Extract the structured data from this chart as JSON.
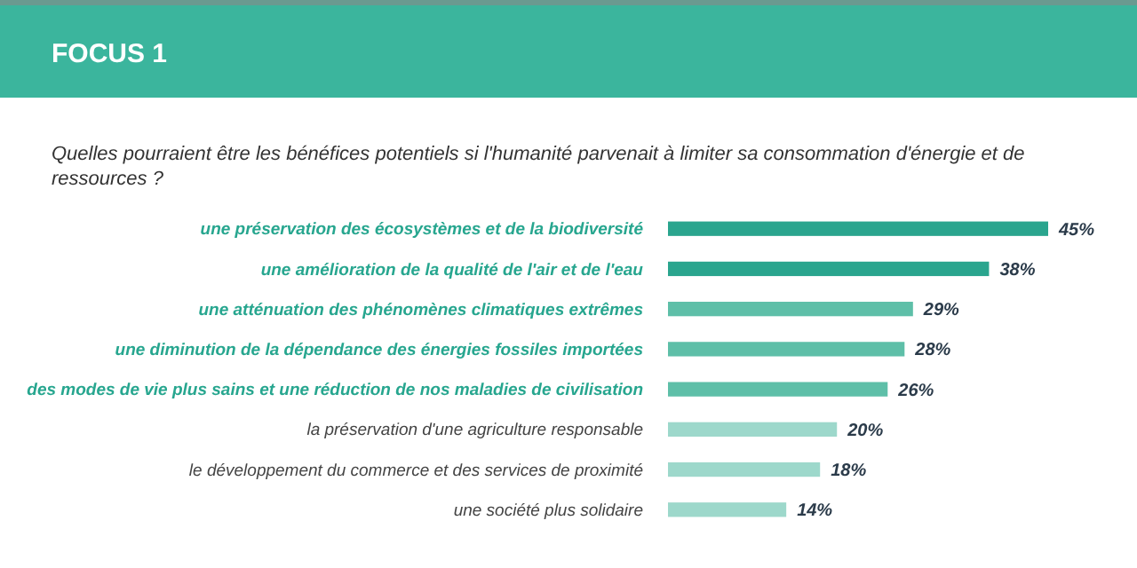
{
  "chart_data": {
    "type": "bar",
    "orientation": "horizontal",
    "title": "FOCUS 1",
    "subtitle": "Quelles pourraient être les bénéfices potentiels si l'humanité parvenait à limiter sa consommation d'énergie et de ressources ?",
    "categories": [
      "une préservation des écosystèmes et de la biodiversité",
      "une amélioration de la qualité de l'air et de l'eau",
      "une atténuation des phénomènes climatiques extrêmes",
      "une diminution de la dépendance des énergies fossiles importées",
      "des modes de vie plus sains et une réduction de nos maladies de civilisation",
      "la préservation d'une agriculture responsable",
      "le développement du commerce et des services de proximité",
      "une société plus solidaire"
    ],
    "values": [
      45,
      38,
      29,
      28,
      26,
      20,
      18,
      14
    ],
    "colors": [
      "#2aa58e",
      "#2aa58e",
      "#5ebfa8",
      "#5ebfa8",
      "#5ebfa8",
      "#9dd8cb",
      "#9dd8cb",
      "#9dd8cb"
    ],
    "value_labels": [
      "45%",
      "38%",
      "29%",
      "28%",
      "26%",
      "20%",
      "18%",
      "14%"
    ]
  }
}
